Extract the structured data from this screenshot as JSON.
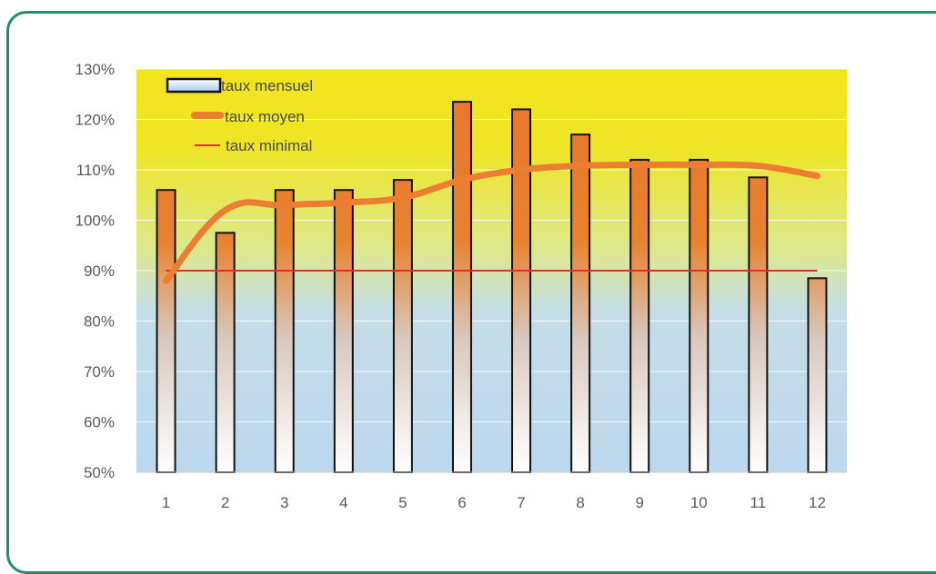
{
  "chart_data": {
    "type": "bar",
    "categories": [
      "1",
      "2",
      "3",
      "4",
      "5",
      "6",
      "7",
      "8",
      "9",
      "10",
      "11",
      "12"
    ],
    "series": [
      {
        "name": "taux mensuel",
        "type": "bar",
        "values": [
          106,
          97.5,
          106,
          106,
          108,
          123.5,
          122,
          117,
          112,
          112,
          108.5,
          88.5
        ]
      },
      {
        "name": "taux moyen",
        "type": "line",
        "values": [
          88,
          102,
          103,
          103.5,
          104.5,
          108,
          110,
          110.8,
          111,
          111,
          110.8,
          108.8
        ]
      },
      {
        "name": "taux minimal",
        "type": "line",
        "values": [
          90,
          90,
          90,
          90,
          90,
          90,
          90,
          90,
          90,
          90,
          90,
          90
        ]
      }
    ],
    "y_ticks": [
      "50%",
      "60%",
      "70%",
      "80%",
      "90%",
      "100%",
      "110%",
      "120%",
      "130%"
    ],
    "ylim": [
      50,
      130
    ],
    "y_unit": "%",
    "grid": true,
    "legend_position": "top-left",
    "colors": {
      "bar_top": "#e8782e",
      "bar_bottom": "#ffffff",
      "bar_border": "#111111",
      "mean_line": "#ed7d31",
      "min_line": "#e0302a",
      "bg_top": "#f2e51c",
      "bg_bottom": "#bcd8ee",
      "frame": "#1f8c6e"
    }
  }
}
